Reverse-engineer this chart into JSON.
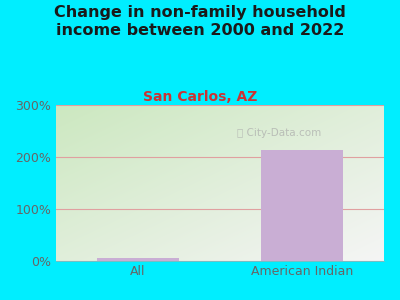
{
  "title": "Change in non-family household\nincome between 2000 and 2022",
  "subtitle": "San Carlos, AZ",
  "categories": [
    "All",
    "American Indian"
  ],
  "values": [
    5,
    213
  ],
  "bar_color": "#c9aed4",
  "ylim": [
    0,
    300
  ],
  "yticks": [
    0,
    100,
    200,
    300
  ],
  "background_color": "#00eeff",
  "plot_bg_color_bottom_left": "#cce8c0",
  "plot_bg_color_top_right": "#f5f5f5",
  "title_fontsize": 11.5,
  "subtitle_fontsize": 10,
  "subtitle_color": "#cc3333",
  "title_color": "#1a1a1a",
  "tick_label_color": "#666666",
  "gridline_color": "#e0a0a0",
  "watermark": "City-Data.com",
  "watermark_icon": "ⓘ"
}
